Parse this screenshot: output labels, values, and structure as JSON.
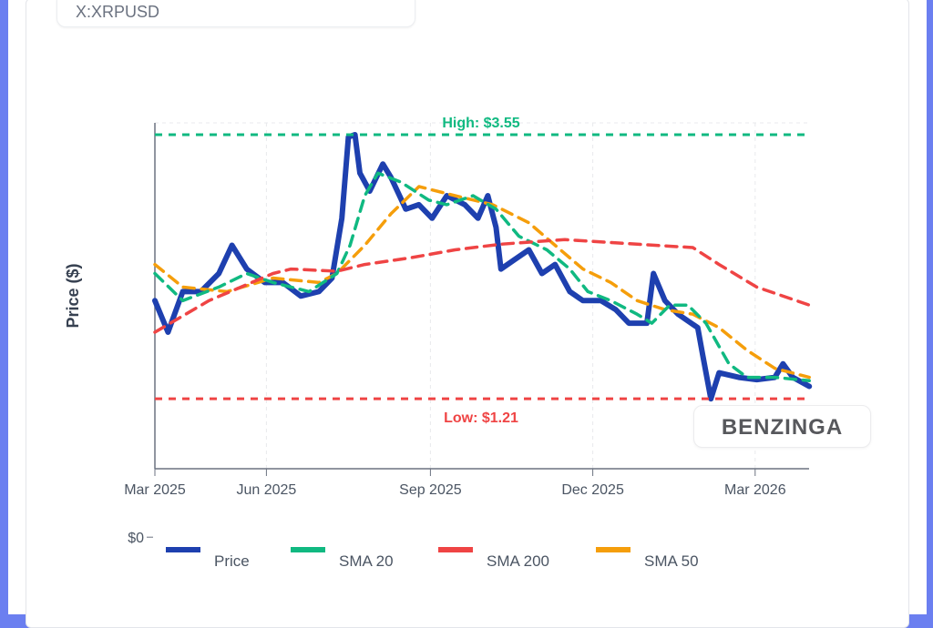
{
  "header": {
    "symbol": "X:XRPUSD"
  },
  "branding": {
    "logo": "BENZINGA"
  },
  "chart_data": {
    "type": "line",
    "x_unit": "days from axis start",
    "ylabel": "Price ($)",
    "y_tick_labels": [
      {
        "value": 0,
        "label": "$0"
      }
    ],
    "x_ticks": [
      {
        "day": 0,
        "label": "Mar 2025"
      },
      {
        "day": 68,
        "label": "Jun 2025"
      },
      {
        "day": 168,
        "label": "Sep 2025"
      },
      {
        "day": 267,
        "label": "Dec 2025"
      },
      {
        "day": 366,
        "label": "Mar 2026"
      }
    ],
    "xlim": [
      0,
      399
    ],
    "annotations": [
      {
        "label": "High: $3.55",
        "value": 3.55,
        "color": "#10b981"
      },
      {
        "label": "Low: $1.21",
        "value": 1.21,
        "color": "#ef4444"
      }
    ],
    "series": [
      {
        "name": "Price",
        "color": "#1e40af",
        "dashed": false,
        "x": [
          0,
          8,
          17,
          28,
          39,
          47,
          56,
          67,
          78,
          89,
          100,
          108,
          114,
          118,
          122,
          125,
          131,
          139,
          144,
          153,
          161,
          169,
          178,
          189,
          197,
          203,
          208,
          211,
          219,
          228,
          236,
          244,
          253,
          261,
          272,
          281,
          289,
          300,
          304,
          311,
          319,
          331,
          334,
          339,
          344,
          356,
          367,
          378,
          383,
          389,
          399
        ],
        "y": [
          2.08,
          1.8,
          2.16,
          2.16,
          2.32,
          2.57,
          2.36,
          2.24,
          2.24,
          2.12,
          2.16,
          2.28,
          2.81,
          3.53,
          3.55,
          3.21,
          3.05,
          3.29,
          3.17,
          2.89,
          2.93,
          2.81,
          3.01,
          2.93,
          2.81,
          3.01,
          2.73,
          2.36,
          2.44,
          2.53,
          2.32,
          2.4,
          2.16,
          2.08,
          2.08,
          2.0,
          1.88,
          1.88,
          2.32,
          2.08,
          1.96,
          1.84,
          1.6,
          1.21,
          1.44,
          1.4,
          1.38,
          1.4,
          1.52,
          1.4,
          1.32
        ]
      },
      {
        "name": "SMA 20",
        "color": "#10b981",
        "dashed": true,
        "x": [
          0,
          17,
          39,
          56,
          72,
          94,
          111,
          119,
          128,
          136,
          150,
          167,
          178,
          194,
          208,
          222,
          239,
          253,
          264,
          278,
          294,
          303,
          314,
          325,
          336,
          350,
          361,
          378,
          399
        ],
        "y": [
          2.32,
          2.08,
          2.2,
          2.32,
          2.24,
          2.16,
          2.32,
          2.57,
          3.01,
          3.21,
          3.13,
          2.97,
          2.93,
          3.01,
          2.89,
          2.65,
          2.53,
          2.36,
          2.16,
          2.08,
          1.96,
          1.88,
          2.04,
          2.04,
          1.88,
          1.52,
          1.4,
          1.4,
          1.37
        ]
      },
      {
        "name": "SMA 200",
        "color": "#ef4444",
        "dashed": true,
        "x": [
          0,
          33,
          72,
          83,
          111,
          128,
          156,
          183,
          211,
          239,
          250,
          294,
          328,
          344,
          367,
          399
        ],
        "y": [
          1.8,
          2.08,
          2.32,
          2.36,
          2.34,
          2.4,
          2.46,
          2.53,
          2.58,
          2.61,
          2.62,
          2.58,
          2.55,
          2.4,
          2.2,
          2.04
        ]
      },
      {
        "name": "SMA 50",
        "color": "#f59e0b",
        "dashed": true,
        "x": [
          0,
          17,
          44,
          72,
          100,
          111,
          128,
          144,
          161,
          183,
          206,
          228,
          244,
          261,
          278,
          294,
          311,
          328,
          344,
          361,
          378,
          399
        ],
        "y": [
          2.4,
          2.2,
          2.16,
          2.28,
          2.24,
          2.32,
          2.57,
          2.85,
          3.09,
          3.01,
          2.93,
          2.77,
          2.57,
          2.36,
          2.24,
          2.08,
          2.0,
          1.96,
          1.84,
          1.64,
          1.48,
          1.4
        ]
      }
    ],
    "legend": [
      "Price",
      "SMA 20",
      "SMA 200",
      "SMA 50"
    ],
    "legend_placement": "bottom"
  }
}
